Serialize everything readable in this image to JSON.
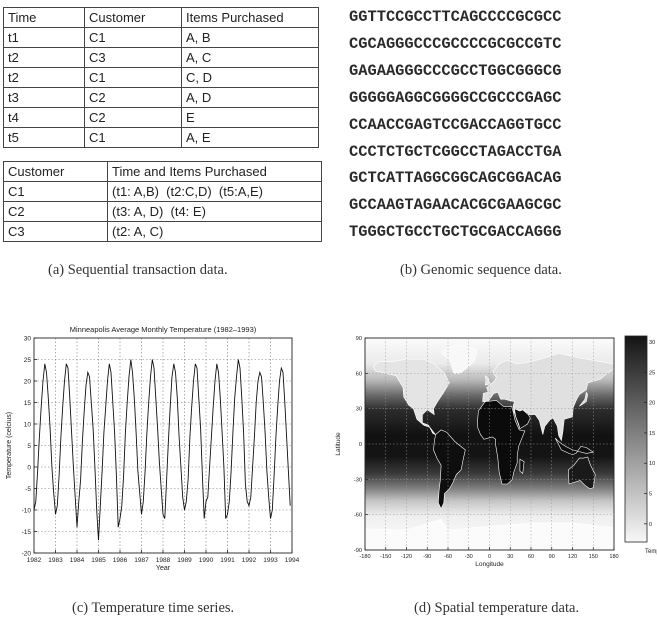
{
  "table1": {
    "headers": [
      "Time",
      "Customer",
      "Items Purchased"
    ],
    "rows": [
      [
        "t1",
        "C1",
        "A, B"
      ],
      [
        "t2",
        "C3",
        "A, C"
      ],
      [
        "t2",
        "C1",
        "C, D"
      ],
      [
        "t3",
        "C2",
        "A, D"
      ],
      [
        "t4",
        "C2",
        "E"
      ],
      [
        "t5",
        "C1",
        "A, E"
      ]
    ]
  },
  "table2": {
    "headers": [
      "Customer",
      "Time and Items Purchased"
    ],
    "rows": [
      [
        "C1",
        "(t1: A,B)  (t2:C,D)  (t5:A,E)"
      ],
      [
        "C2",
        "(t3: A, D)  (t4: E)"
      ],
      [
        "C3",
        "(t2: A, C)"
      ]
    ]
  },
  "dna_lines": [
    "GGTTCCGCCTTCAGCCCCGCGCC",
    "CGCAGGGCCCGCCCCGCGCCGTC",
    "GAGAAGGGCCCGCCTGGCGGGCG",
    "GGGGGAGGCGGGGCCGCCCGAGC",
    "CCAACCGAGTCCGACCAGGTGCC",
    "CCCTCTGCTCGGCCTAGACCTGA",
    "GCTCATTAGGCGGCAGCGGACAG",
    "GCCAAGTAGAACACGCGAAGCGC",
    "TGGGCTGCCTGCTGCGACCAGGG"
  ],
  "captions": {
    "a": "(a) Sequential transaction data.",
    "b": "(b) Genomic sequence data.",
    "c": "(c) Temperature time series.",
    "d": "(d) Spatial temperature data."
  },
  "chart_data": [
    {
      "type": "line",
      "title": "Minneapolis Average Monthly Temperature (1982–1993)",
      "xlabel": "Year",
      "ylabel": "Temperature (celcius)",
      "xlim": [
        1982,
        1994
      ],
      "ylim": [
        -20,
        30
      ],
      "xticks": [
        "1982",
        "1983",
        "1984",
        "1985",
        "1986",
        "1987",
        "1988",
        "1989",
        "1990",
        "1991",
        "1992",
        "1993",
        "1994"
      ],
      "yticks": [
        "30",
        "25",
        "20",
        "15",
        "10",
        "5",
        "0",
        "-5",
        "-10",
        "-15",
        "-20"
      ],
      "grid": true,
      "series": [
        {
          "x": [
            1982.0,
            1982.083,
            1982.167,
            1982.25,
            1982.333,
            1982.417,
            1982.5,
            1982.583,
            1982.667,
            1982.75,
            1982.833,
            1982.917,
            1983.0,
            1983.083,
            1983.167,
            1983.25,
            1983.333,
            1983.417,
            1983.5,
            1983.583,
            1983.667,
            1983.75,
            1983.833,
            1983.917,
            1984.0,
            1984.083,
            1984.167,
            1984.25,
            1984.333,
            1984.417,
            1984.5,
            1984.583,
            1984.667,
            1984.75,
            1984.833,
            1984.917,
            1985.0,
            1985.083,
            1985.167,
            1985.25,
            1985.333,
            1985.417,
            1985.5,
            1985.583,
            1985.667,
            1985.75,
            1985.833,
            1985.917,
            1986.0,
            1986.083,
            1986.167,
            1986.25,
            1986.333,
            1986.417,
            1986.5,
            1986.583,
            1986.667,
            1986.75,
            1986.833,
            1986.917,
            1987.0,
            1987.083,
            1987.167,
            1987.25,
            1987.333,
            1987.417,
            1987.5,
            1987.583,
            1987.667,
            1987.75,
            1987.833,
            1987.917,
            1988.0,
            1988.083,
            1988.167,
            1988.25,
            1988.333,
            1988.417,
            1988.5,
            1988.583,
            1988.667,
            1988.75,
            1988.833,
            1988.917,
            1989.0,
            1989.083,
            1989.167,
            1989.25,
            1989.333,
            1989.417,
            1989.5,
            1989.583,
            1989.667,
            1989.75,
            1989.833,
            1989.917,
            1990.0,
            1990.083,
            1990.167,
            1990.25,
            1990.333,
            1990.417,
            1990.5,
            1990.583,
            1990.667,
            1990.75,
            1990.833,
            1990.917,
            1991.0,
            1991.083,
            1991.167,
            1991.25,
            1991.333,
            1991.417,
            1991.5,
            1991.583,
            1991.667,
            1991.75,
            1991.833,
            1991.917,
            1992.0,
            1992.083,
            1992.167,
            1992.25,
            1992.333,
            1992.417,
            1992.5,
            1992.583,
            1992.667,
            1992.75,
            1992.833,
            1992.917,
            1993.0,
            1993.083,
            1993.167,
            1993.25,
            1993.333,
            1993.417,
            1993.5,
            1993.583,
            1993.667,
            1993.75,
            1993.833,
            1993.917
          ],
          "y": [
            -10,
            -8,
            -1,
            7,
            14,
            20,
            24,
            22,
            16,
            9,
            0,
            -6,
            -11,
            -9,
            -2,
            7,
            14,
            20,
            24,
            23,
            16,
            8,
            0,
            -7,
            -14,
            -8,
            -3,
            6,
            13,
            19,
            22,
            21,
            15,
            9,
            0,
            -10,
            -17,
            -9,
            -1,
            8,
            14,
            20,
            24,
            22,
            15,
            8,
            -2,
            -14,
            -12,
            -9,
            -2,
            8,
            15,
            21,
            25,
            22,
            16,
            8,
            -1,
            -6,
            -11,
            -8,
            -1,
            8,
            15,
            21,
            25,
            23,
            16,
            9,
            1,
            -5,
            -11,
            -12,
            -3,
            6,
            14,
            21,
            24,
            22,
            16,
            7,
            0,
            -7,
            -10,
            -8,
            -3,
            7,
            14,
            20,
            24,
            23,
            16,
            9,
            -2,
            -12,
            -8,
            -7,
            0,
            7,
            14,
            20,
            24,
            22,
            16,
            8,
            0,
            -12,
            -11,
            -8,
            -1,
            8,
            16,
            21,
            25,
            23,
            16,
            8,
            -4,
            -8,
            -9,
            -7,
            0,
            7,
            15,
            20,
            22,
            21,
            15,
            8,
            -1,
            -7,
            -12,
            -10,
            -2,
            7,
            14,
            20,
            23,
            22,
            15,
            7,
            -1,
            -9
          ]
        }
      ]
    },
    {
      "type": "heatmap",
      "xlabel": "Longitude",
      "ylabel": "Latitude",
      "xlim": [
        -180,
        180
      ],
      "ylim": [
        -90,
        90
      ],
      "xticks": [
        "-180",
        "-150",
        "-120",
        "-90",
        "-60",
        "-30",
        "0",
        "30",
        "60",
        "90",
        "120",
        "150",
        "180"
      ],
      "yticks": [
        "90",
        "60",
        "30",
        "0",
        "-30",
        "-60",
        "-90"
      ],
      "colorbar_label": "Temp",
      "colorbar_ticks": [
        "30",
        "25",
        "20",
        "15",
        "10",
        "5",
        "0"
      ],
      "colorbar_range": [
        -3,
        31
      ],
      "colormap": "white-to-black",
      "grid": true
    }
  ]
}
